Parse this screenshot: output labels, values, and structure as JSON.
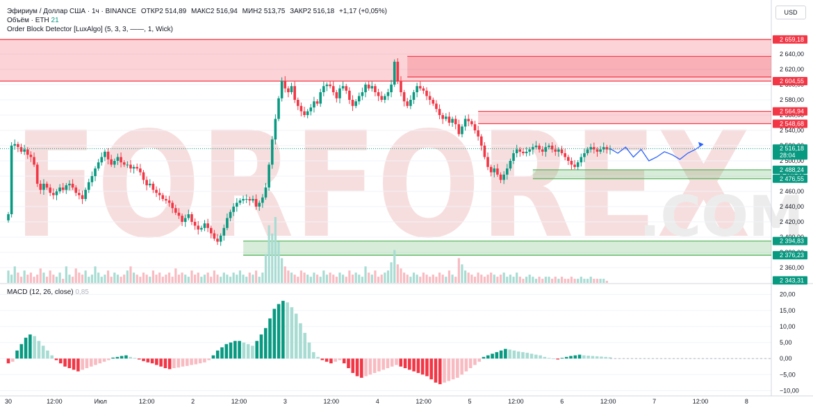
{
  "header": {
    "symbol": "Эфириум / Доллар США · 1ч · BINANCE",
    "open": "ОТКР2 514,89",
    "high": "МАКС2 516,94",
    "low": "МИН2 513,75",
    "close": "ЗАКР2 516,18",
    "change": "+1,17 (+0,05%)",
    "volume_label": "Объём · ETH",
    "volume_value": "21",
    "indicator": "Order Block Detector [LuxAlgo] (5, 3, 3, ——, 1, Wick)",
    "currency": "USD"
  },
  "macd_legend": {
    "label": "MACD (12, 26, close)",
    "value": "0,85"
  },
  "watermark": "FORFOREX",
  "watermark_com": ".COM",
  "chart_data": [
    {
      "type": "candlestick",
      "pane": "price",
      "ylim": [
        2340,
        2670
      ],
      "y_ticks": [
        2360,
        2380,
        2400,
        2420,
        2440,
        2460,
        2480,
        2500,
        2520,
        2540,
        2560,
        2580,
        2600,
        2620,
        2640
      ],
      "y_tick_labels": [
        "2 360,00",
        "2 380,00",
        "2 400,00",
        "2 420,00",
        "2 440,00",
        "2 460,00",
        "2 480,00",
        "2 500,00",
        "2 520,00",
        "2 540,00",
        "2 560,00",
        "2 580,00",
        "2 600,00",
        "2 620,00",
        "2 640,00"
      ],
      "x_tick_labels": [
        "30",
        "12:00",
        "Июл",
        "12:00",
        "2",
        "12:00",
        "3",
        "12:00",
        "4",
        "12:00",
        "5",
        "12:00",
        "6",
        "12:00",
        "7",
        "12:00",
        "8"
      ],
      "price_markers": [
        {
          "value": 2659.18,
          "label": "2 659,18",
          "color": "#f23645"
        },
        {
          "value": 2604.55,
          "label": "2 604,55",
          "color": "#f23645"
        },
        {
          "value": 2564.94,
          "label": "2 564,94",
          "color": "#f23645"
        },
        {
          "value": 2548.68,
          "label": "2 548,68",
          "color": "#f23645"
        },
        {
          "value": 2516.18,
          "label": "2 516,18",
          "color": "#089981",
          "sub": "28:04"
        },
        {
          "value": 2488.24,
          "label": "2 488,24",
          "color": "#089981"
        },
        {
          "value": 2476.55,
          "label": "2 476,55",
          "color": "#089981"
        },
        {
          "value": 2394.83,
          "label": "2 394,83",
          "color": "#089981"
        },
        {
          "value": 2376.23,
          "label": "2 376,23",
          "color": "#089981"
        },
        {
          "value": 2343.31,
          "label": "2 343,31",
          "color": "#089981"
        }
      ],
      "order_blocks": [
        {
          "kind": "bearish",
          "top": 2659.18,
          "bottom": 2604.55,
          "start": 0
        },
        {
          "kind": "bearish",
          "top": 2637,
          "bottom": 2610,
          "start": 124
        },
        {
          "kind": "bearish",
          "top": 2564.94,
          "bottom": 2548.68,
          "start": 146
        },
        {
          "kind": "bullish",
          "top": 2488.24,
          "bottom": 2476.55,
          "start": 163
        },
        {
          "kind": "bullish",
          "top": 2394.83,
          "bottom": 2376.23,
          "start": 73
        }
      ],
      "close_path": [
        2430,
        2520,
        2522,
        2518,
        2512,
        2515,
        2508,
        2505,
        2495,
        2470,
        2462,
        2470,
        2465,
        2458,
        2455,
        2460,
        2465,
        2462,
        2468,
        2470,
        2465,
        2458,
        2455,
        2450,
        2462,
        2472,
        2480,
        2490,
        2498,
        2505,
        2512,
        2502,
        2495,
        2500,
        2505,
        2498,
        2495,
        2495,
        2490,
        2492,
        2490,
        2485,
        2475,
        2468,
        2470,
        2462,
        2458,
        2455,
        2450,
        2448,
        2445,
        2438,
        2432,
        2428,
        2420,
        2425,
        2430,
        2420,
        2415,
        2410,
        2412,
        2418,
        2412,
        2405,
        2398,
        2394,
        2402,
        2412,
        2425,
        2433,
        2440,
        2445,
        2448,
        2450,
        2450,
        2448,
        2450,
        2440,
        2445,
        2452,
        2465,
        2495,
        2528,
        2555,
        2582,
        2605,
        2595,
        2590,
        2598,
        2580,
        2572,
        2565,
        2560,
        2565,
        2570,
        2578,
        2575,
        2590,
        2598,
        2600,
        2598,
        2590,
        2582,
        2595,
        2598,
        2592,
        2580,
        2572,
        2578,
        2585,
        2590,
        2600,
        2595,
        2598,
        2590,
        2585,
        2580,
        2585,
        2590,
        2600,
        2630,
        2605,
        2590,
        2578,
        2572,
        2580,
        2590,
        2598,
        2595,
        2592,
        2585,
        2580,
        2575,
        2568,
        2560,
        2555,
        2558,
        2550,
        2555,
        2548,
        2535,
        2545,
        2555,
        2552,
        2548,
        2540,
        2532,
        2520,
        2505,
        2492,
        2485,
        2490,
        2482,
        2475,
        2482,
        2490,
        2500,
        2510,
        2515,
        2512,
        2510,
        2512,
        2515,
        2518,
        2520,
        2515,
        2512,
        2518,
        2520,
        2515,
        2512,
        2515,
        2510,
        2505,
        2500,
        2495,
        2492,
        2498,
        2505,
        2510,
        2515,
        2518,
        2515,
        2512,
        2515,
        2518,
        2515,
        2516
      ],
      "volume": [
        6,
        4,
        8,
        5,
        3,
        6,
        4,
        5,
        3,
        4,
        7,
        5,
        3,
        6,
        4,
        3,
        5,
        2,
        8,
        4,
        3,
        7,
        5,
        4,
        6,
        3,
        4,
        8,
        5,
        3,
        4,
        6,
        3,
        5,
        4,
        3,
        4,
        6,
        8,
        5,
        4,
        3,
        5,
        4,
        3,
        6,
        4,
        5,
        3,
        4,
        5,
        3,
        7,
        4,
        5,
        4,
        3,
        6,
        4,
        5,
        3,
        4,
        5,
        3,
        6,
        4,
        3,
        5,
        4,
        3,
        5,
        4,
        6,
        4,
        3,
        5,
        4,
        6,
        3,
        5,
        14,
        28,
        24,
        32,
        20,
        12,
        8,
        6,
        5,
        4,
        3,
        6,
        5,
        4,
        3,
        5,
        4,
        3,
        6,
        4,
        5,
        4,
        3,
        5,
        4,
        3,
        6,
        4,
        5,
        4,
        3,
        8,
        5,
        4,
        6,
        3,
        4,
        5,
        6,
        10,
        16,
        9,
        7,
        5,
        4,
        3,
        5,
        4,
        3,
        5,
        4,
        3,
        4,
        3,
        5,
        4,
        3,
        6,
        4,
        3,
        12,
        9,
        6,
        5,
        4,
        3,
        5,
        4,
        3,
        4,
        5,
        4,
        3,
        4,
        5,
        3,
        4,
        3,
        5,
        3,
        2,
        3,
        4,
        3,
        2,
        3,
        2,
        3,
        3,
        2,
        3,
        2,
        3,
        2,
        2,
        3,
        2,
        2,
        3,
        2,
        2,
        3,
        2,
        2,
        2,
        2,
        1
      ],
      "projection": [
        2516,
        2510,
        2518,
        2505,
        2515,
        2500,
        2505,
        2512,
        2508,
        2502,
        2510,
        2515,
        2522
      ],
      "projection_color": "#2962ff"
    },
    {
      "type": "bar",
      "pane": "macd",
      "ylim": [
        -11,
        21
      ],
      "y_ticks": [
        -10,
        -5,
        0,
        5,
        10,
        15,
        20
      ],
      "y_tick_labels": [
        "−10,00",
        "−5,00",
        "0,00",
        "5,00",
        "10,00",
        "15,00",
        "20,00"
      ],
      "values": [
        -1.5,
        -1.0,
        2.5,
        4.5,
        6.5,
        7.5,
        7.0,
        5.5,
        4.0,
        2.5,
        1.0,
        -0.5,
        -1.5,
        -2.5,
        -3.0,
        -3.5,
        -4.0,
        -3.5,
        -3.0,
        -2.5,
        -2.0,
        -1.5,
        -1.0,
        -0.5,
        0.3,
        0.5,
        0.8,
        1.0,
        0.5,
        0.2,
        -0.3,
        -0.8,
        -1.2,
        -1.5,
        -2.0,
        -2.5,
        -3.0,
        -3.3,
        -3.0,
        -2.8,
        -2.5,
        -2.3,
        -2.0,
        -1.8,
        -1.5,
        -1.2,
        -0.5,
        1.0,
        2.5,
        3.5,
        4.5,
        5.0,
        5.5,
        5.5,
        5.0,
        4.5,
        4.0,
        5.5,
        7.5,
        9.5,
        12.5,
        15.5,
        17.0,
        18.0,
        17.5,
        16.0,
        14.0,
        11.0,
        8.0,
        5.0,
        2.0,
        0.5,
        -0.5,
        -1.0,
        -1.5,
        -1.0,
        -0.5,
        -1.5,
        -3.0,
        -4.5,
        -5.5,
        -6.0,
        -5.5,
        -5.0,
        -4.5,
        -4.0,
        -3.5,
        -3.0,
        -2.5,
        -2.0,
        -2.5,
        -3.0,
        -3.5,
        -4.0,
        -4.5,
        -5.0,
        -5.5,
        -6.5,
        -7.5,
        -8.0,
        -7.5,
        -7.0,
        -6.5,
        -6.0,
        -5.0,
        -4.0,
        -3.0,
        -2.0,
        -1.0,
        0.5,
        1.0,
        1.5,
        2.0,
        2.5,
        3.0,
        2.8,
        2.5,
        2.2,
        2.0,
        1.8,
        1.5,
        1.2,
        1.0,
        0.5,
        0.2,
        0.0,
        -0.3,
        0.2,
        0.5,
        0.8,
        1.0,
        1.2,
        1.0,
        0.9,
        0.8,
        0.7,
        0.6,
        0.5,
        0.4
      ]
    }
  ],
  "colors": {
    "up": "#089981",
    "down": "#f23645",
    "up_light": "#a8dcd3",
    "down_light": "#f8bbc1",
    "bear_zone": "#f23645",
    "bull_zone": "#4caf50"
  }
}
